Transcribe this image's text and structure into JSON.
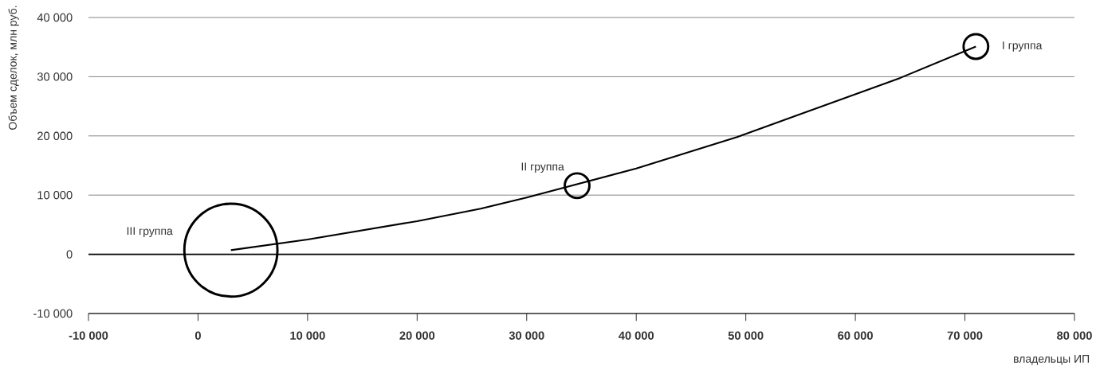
{
  "chart_data": {
    "type": "bubble",
    "xlabel": "владельцы ИП",
    "ylabel": "Объем сделок, млн руб.",
    "xlim": [
      -10000,
      80000
    ],
    "ylim": [
      -10000,
      40000
    ],
    "xticks": [
      {
        "value": -10000,
        "label": "-10 000"
      },
      0,
      {
        "value": 10000,
        "label": "10 000"
      },
      {
        "value": 20000,
        "label": "20 000"
      },
      {
        "value": 30000,
        "label": "30 000"
      },
      {
        "value": 40000,
        "label": "40 000"
      },
      {
        "value": 50000,
        "label": "50 000"
      },
      {
        "value": 60000,
        "label": "60 000"
      },
      {
        "value": 70000,
        "label": "70 000"
      },
      {
        "value": 80000,
        "label": "80 000"
      }
    ],
    "yticks": [
      {
        "value": -10000,
        "label": "-10 000"
      },
      0,
      {
        "value": 10000,
        "label": "10 000"
      },
      {
        "value": 20000,
        "label": "20 000"
      },
      {
        "value": 30000,
        "label": "30 000"
      },
      {
        "value": 40000,
        "label": "40 000"
      }
    ],
    "grid": "y",
    "ref_lines": [
      {
        "axis": "y",
        "value": 0,
        "color": "#000000"
      }
    ],
    "series": [
      {
        "type": "bubble",
        "color": "#000000",
        "x": [
          3000,
          34600,
          71000
        ],
        "values": [
          700,
          11600,
          35100
        ],
        "sizes": [
          1,
          0.07,
          0.07
        ]
      },
      {
        "type": "line",
        "color": "#000000",
        "x": [
          3000,
          10000,
          20000,
          25800,
          30000,
          40000,
          49200,
          64100,
          71000
        ],
        "values": [
          700,
          2500,
          5600,
          7700,
          9600,
          14500,
          19800,
          29800,
          35100
        ]
      }
    ],
    "annotations": [
      {
        "text": "I группа",
        "x": 71000,
        "y": 35100
      },
      {
        "text": "II группа",
        "x": 34600,
        "y": 11600
      },
      "III группа"
    ]
  }
}
